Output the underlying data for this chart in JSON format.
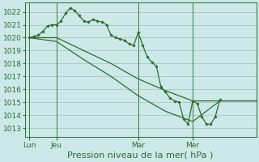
{
  "bg_color": "#cce8e8",
  "grid_color": "#99bbaa",
  "line_color": "#2d6e2d",
  "title": "Pression niveau de la mer( hPa )",
  "ylim": [
    1012.3,
    1022.7
  ],
  "yticks": [
    1013,
    1014,
    1015,
    1016,
    1017,
    1018,
    1019,
    1020,
    1021,
    1022
  ],
  "tick_fontsize": 6.5,
  "title_fontsize": 8.0,
  "xtick_pos": [
    0,
    24,
    96,
    144
  ],
  "xtick_labels": [
    "Lun",
    "Jeu",
    "Mar",
    "Mer"
  ],
  "xlim": [
    -4,
    200
  ],
  "s1x": [
    0,
    4,
    8,
    12,
    16,
    20,
    24,
    28,
    32,
    36,
    40,
    44,
    48,
    52,
    56,
    60,
    64,
    68,
    72,
    76,
    80,
    84,
    88,
    92,
    96,
    100,
    104,
    108,
    112,
    116,
    120,
    124,
    128,
    132,
    136,
    140,
    144,
    148,
    152,
    156,
    160,
    164,
    168
  ],
  "s1y": [
    1020.0,
    1020.1,
    1020.2,
    1020.5,
    1020.9,
    1021.0,
    1021.0,
    1021.3,
    1021.9,
    1022.3,
    1022.1,
    1021.7,
    1021.3,
    1021.2,
    1021.4,
    1021.3,
    1021.2,
    1021.0,
    1020.2,
    1020.0,
    1019.9,
    1019.8,
    1019.5,
    1019.4,
    1020.4,
    1019.4,
    1018.5,
    1018.1,
    1017.8,
    1016.2,
    1015.8,
    1015.3,
    1015.1,
    1015.0,
    1013.7,
    1013.3,
    1015.1,
    1014.9,
    1013.9,
    1013.3,
    1013.3,
    1013.9,
    1015.2
  ],
  "s2x": [
    0,
    24,
    48,
    72,
    96,
    120,
    144,
    168,
    200
  ],
  "s2y": [
    1020.0,
    1020.0,
    1019.0,
    1018.0,
    1016.8,
    1015.9,
    1015.1,
    1015.1,
    1015.1
  ],
  "s3x": [
    0,
    24,
    48,
    72,
    96,
    120,
    144,
    168,
    200
  ],
  "s3y": [
    1020.0,
    1019.7,
    1018.3,
    1017.0,
    1015.5,
    1014.3,
    1013.5,
    1015.1,
    1015.1
  ]
}
